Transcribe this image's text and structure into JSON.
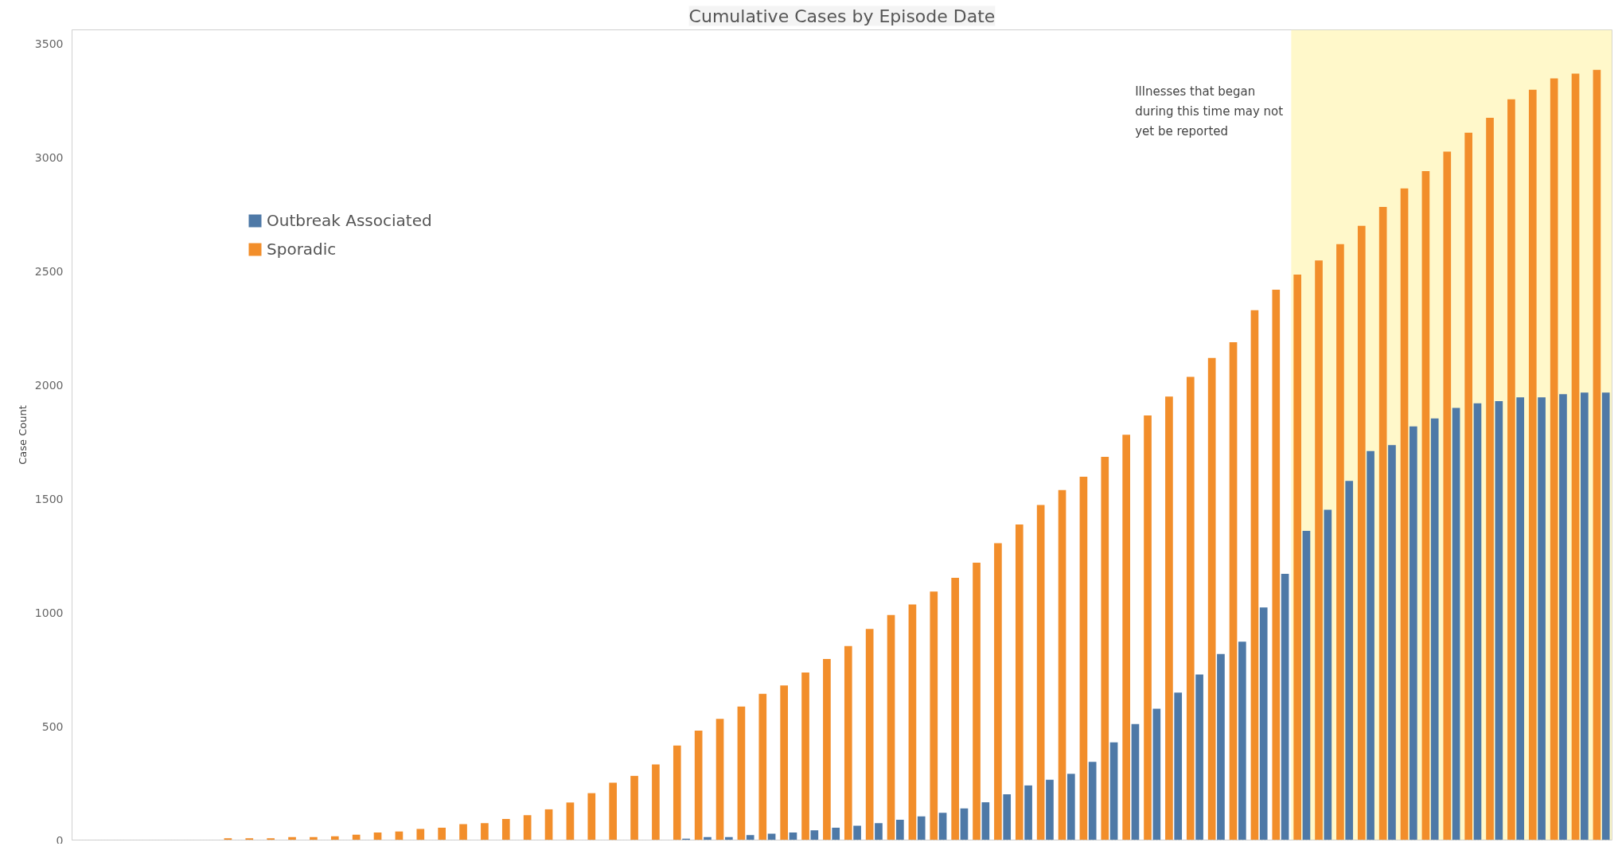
{
  "chart_data": {
    "type": "bar",
    "title": "Cumulative Cases by Episode Date",
    "ylabel": "Case Count",
    "categories": [
      null,
      null,
      null,
      null,
      null,
      null,
      null,
      null,
      null,
      null,
      null,
      null,
      null,
      null,
      null,
      null,
      null,
      null,
      null,
      null,
      null,
      null,
      null,
      null,
      null,
      null,
      null,
      null,
      null,
      null,
      null,
      null,
      null,
      null,
      null,
      null,
      null,
      null,
      null,
      null,
      null,
      null,
      null,
      null,
      null,
      null,
      null,
      null,
      null,
      null,
      null,
      null,
      null,
      null,
      null,
      null,
      null,
      null,
      null,
      null,
      null,
      null,
      null,
      null,
      null,
      null,
      null,
      null,
      null,
      null,
      null,
      null
    ],
    "series": [
      {
        "name": "Outbreak Associated",
        "color": "#4e79a7",
        "values": [
          null,
          null,
          null,
          null,
          null,
          null,
          null,
          0,
          0,
          0,
          0,
          0,
          0,
          0,
          0,
          0,
          0,
          0,
          0,
          0,
          0,
          0,
          0,
          0,
          0,
          0,
          0,
          0,
          6,
          13,
          13,
          22,
          28,
          33,
          43,
          54,
          63,
          74,
          89,
          104,
          120,
          139,
          166,
          201,
          240,
          265,
          291,
          344,
          429,
          510,
          577,
          648,
          727,
          817,
          872,
          1022,
          1170,
          1359,
          1451,
          1578,
          1709,
          1735,
          1818,
          1853,
          1899,
          1919,
          1929,
          1945,
          1945,
          1959,
          1966,
          1966
        ]
      },
      {
        "name": "Sporadic",
        "color": "#f28e2b",
        "values": [
          null,
          null,
          null,
          null,
          null,
          null,
          null,
          8,
          8,
          8,
          13,
          13,
          17,
          24,
          33,
          38,
          49,
          54,
          70,
          74,
          93,
          109,
          135,
          165,
          206,
          252,
          282,
          332,
          415,
          481,
          532,
          587,
          643,
          679,
          736,
          796,
          852,
          928,
          989,
          1035,
          1092,
          1152,
          1219,
          1304,
          1387,
          1472,
          1538,
          1596,
          1684,
          1781,
          1866,
          1949,
          2035,
          2118,
          2187,
          2328,
          2418,
          2485,
          2547,
          2618,
          2699,
          2782,
          2863,
          2939,
          3025,
          3108,
          3174,
          3255,
          3297,
          3347,
          3368,
          3384
        ]
      }
    ],
    "ylim": [
      0,
      3560
    ],
    "yticks": [
      0,
      500,
      1000,
      1500,
      2000,
      2500,
      3000,
      3500
    ],
    "tick_labels": "y",
    "grid": false,
    "legend": "top left",
    "annotations": [
      "Illnesses that began\nduring this time may not\nyet be reported"
    ]
  }
}
